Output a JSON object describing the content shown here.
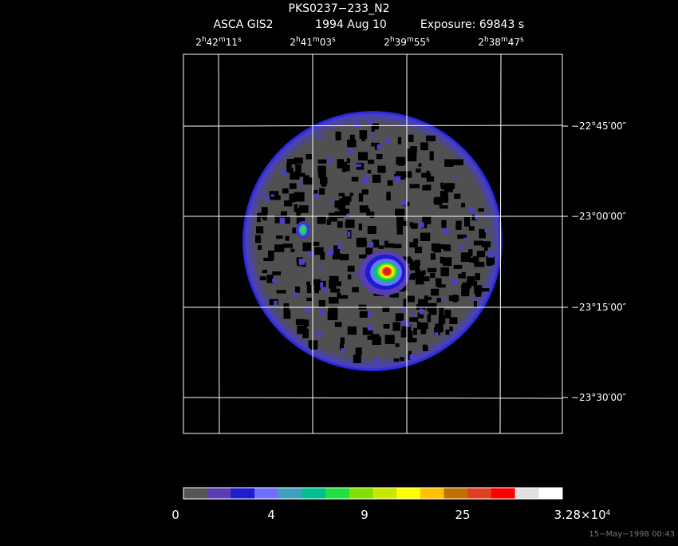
{
  "header": {
    "title": "PKS0237−233_N2",
    "instrument": "ASCA GIS2",
    "date": "1994 Aug 10",
    "exposure": "Exposure: 69843 s"
  },
  "ra_labels": [
    [
      "2",
      "h",
      "42",
      "m",
      "11",
      "s"
    ],
    [
      "2",
      "h",
      "41",
      "m",
      "03",
      "s"
    ],
    [
      "2",
      "h",
      "39",
      "m",
      "55",
      "s"
    ],
    [
      "2",
      "h",
      "38",
      "m",
      "47",
      "s"
    ]
  ],
  "dec_labels": [
    "−22°45′00″",
    "−23°00′00″",
    "−23°15′00″",
    "−23°30′00″"
  ],
  "colorbar": {
    "colors": [
      "#555555",
      "#5a3cb4",
      "#1c1cd0",
      "#7070ff",
      "#3fa0c0",
      "#00c090",
      "#20e040",
      "#80e000",
      "#c8e800",
      "#ffff00",
      "#ffc000",
      "#c07000",
      "#e04020",
      "#ff0000",
      "#e0e0e0",
      "#ffffff"
    ],
    "labels": [
      [
        "0"
      ],
      [
        "4"
      ],
      [
        "9"
      ],
      [
        "25"
      ],
      [
        "3.28×10",
        "4"
      ]
    ]
  },
  "footer": "15−May−1998 00:43"
}
